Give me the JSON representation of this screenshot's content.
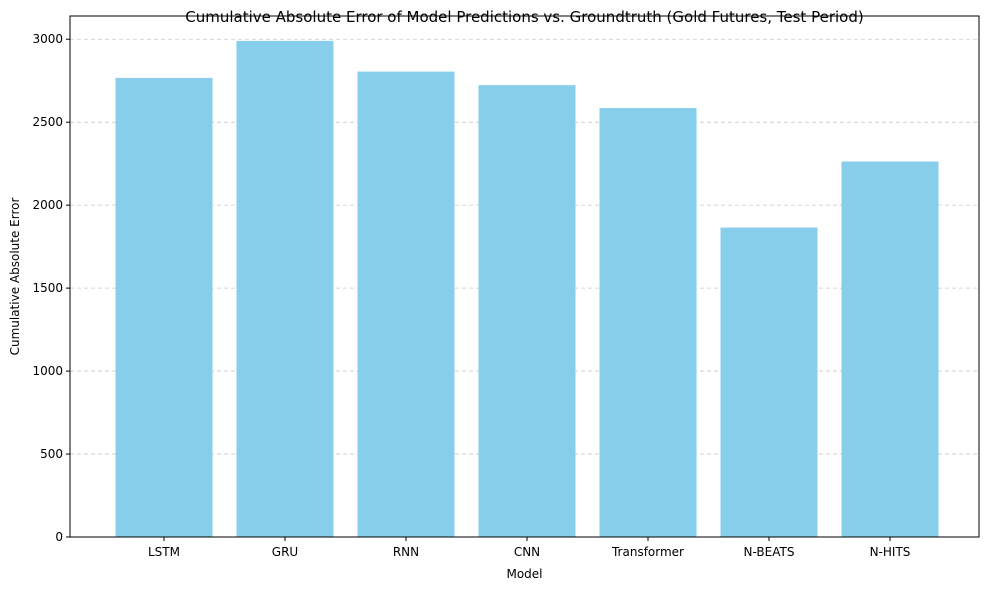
{
  "chart_data": {
    "type": "bar",
    "title": "Cumulative Absolute Error of Model Predictions vs. Groundtruth (Gold Futures, Test Period)",
    "xlabel": "Model",
    "ylabel": "Cumulative Absolute Error",
    "categories": [
      "LSTM",
      "GRU",
      "RNN",
      "CNN",
      "Transformer",
      "N-BEATS",
      "N-HITS"
    ],
    "values": [
      2767,
      2990,
      2805,
      2723,
      2585,
      1865,
      2263
    ],
    "ylim": [
      0,
      3140
    ],
    "yticks": [
      0,
      500,
      1000,
      1500,
      2000,
      2500,
      3000
    ],
    "grid": "y, dashed",
    "bar_color": "#87ceeb"
  }
}
